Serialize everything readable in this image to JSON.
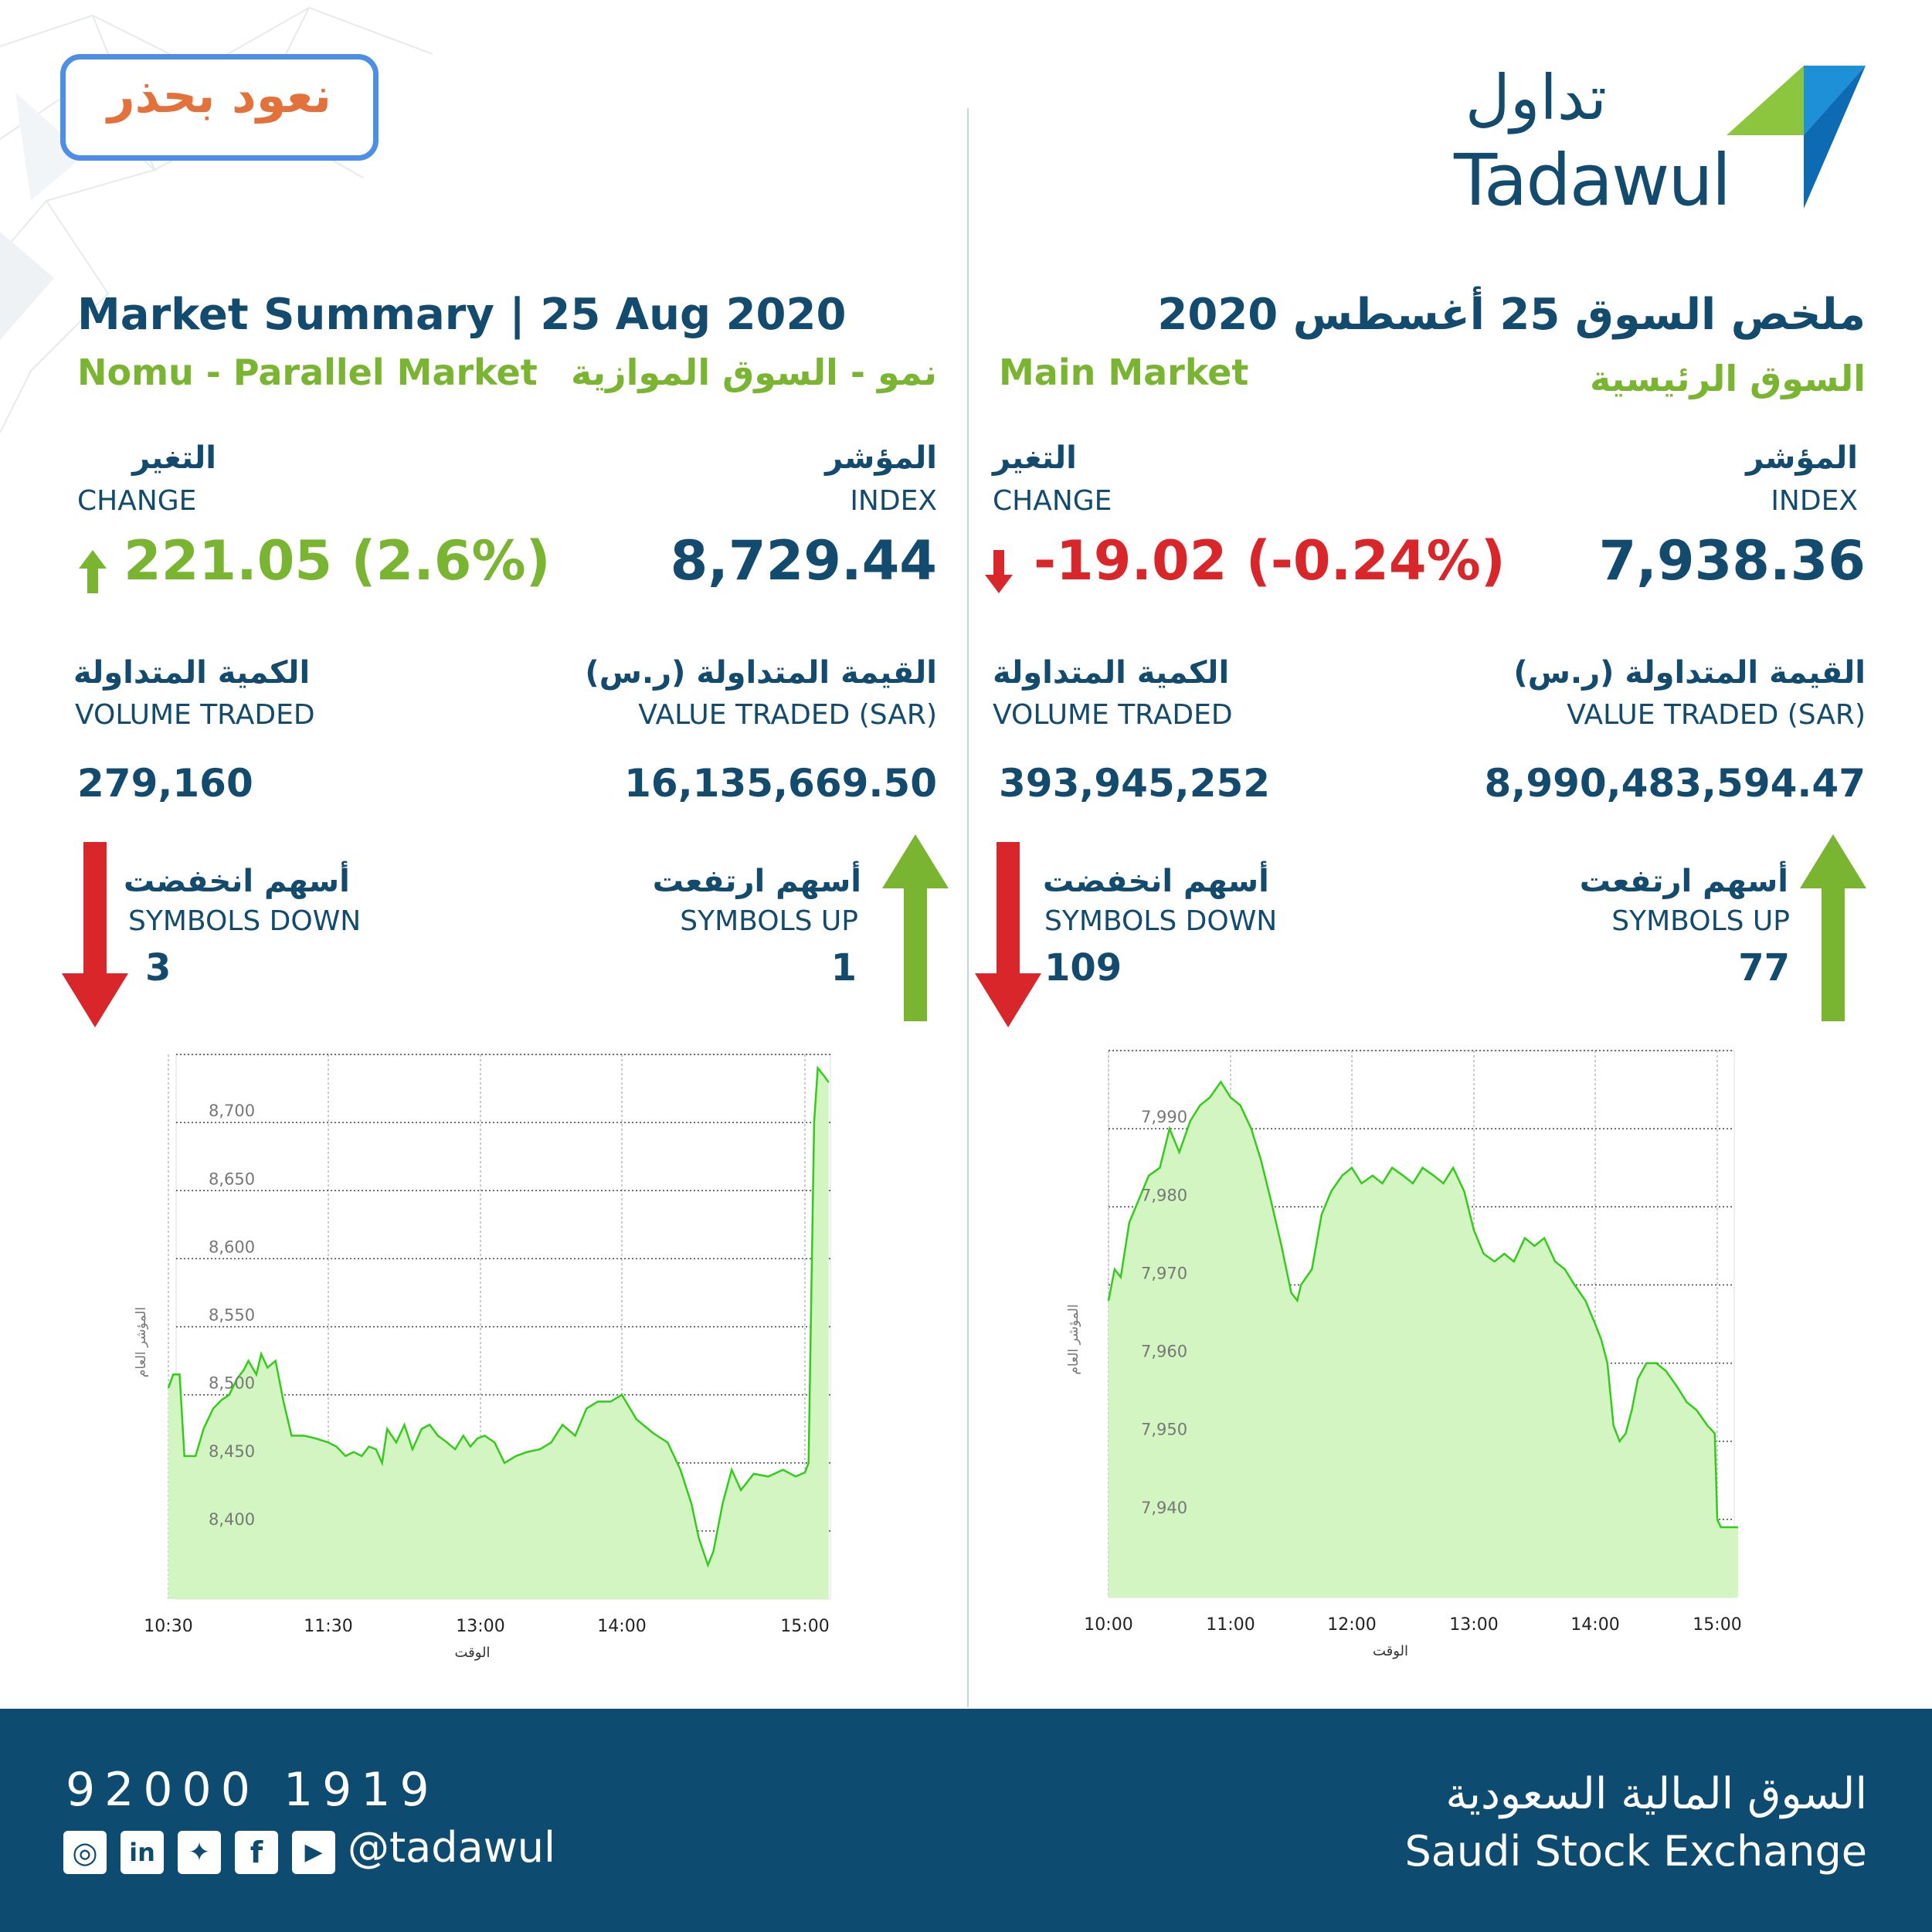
{
  "campaign_logo_text": "نعود بحذر",
  "brand": {
    "ar": "تداول",
    "en": "Tadawul"
  },
  "title_en": "Market Summary | 25 Aug 2020",
  "title_ar": "ملخص السوق 25 أغسطس 2020",
  "nomu": {
    "label_en": "Nomu - Parallel Market",
    "label_ar": "نمو - السوق الموازية",
    "change_ar": "التغير",
    "change_en": "CHANGE",
    "change_value": "221.05 (2.6%)",
    "index_ar": "المؤشر",
    "index_en": "INDEX",
    "index_value": "8,729.44",
    "volume_ar": "الكمية المتداولة",
    "volume_en": "VOLUME TRADED",
    "volume_value": "279,160",
    "value_ar": "القيمة المتداولة (ر.س)",
    "value_en": "VALUE TRADED (SAR)",
    "value_value": "16,135,669.50",
    "down_ar": "أسهم انخفضت",
    "down_en": "SYMBOLS DOWN",
    "down_value": "3",
    "up_ar": "أسهم ارتفعت",
    "up_en": "SYMBOLS UP",
    "up_value": "1"
  },
  "main": {
    "label_en": "Main Market",
    "label_ar": "السوق الرئيسية",
    "change_ar": "التغير",
    "change_en": "CHANGE",
    "change_value": "-19.02 (-0.24%)",
    "index_ar": "المؤشر",
    "index_en": "INDEX",
    "index_value": "7,938.36",
    "volume_ar": "الكمية المتداولة",
    "volume_en": "VOLUME TRADED",
    "volume_value": "393,945,252",
    "value_ar": "القيمة المتداولة (ر.س)",
    "value_en": "VALUE TRADED (SAR)",
    "value_value": "8,990,483,594.47",
    "down_ar": "أسهم انخفضت",
    "down_en": "SYMBOLS DOWN",
    "down_value": "109",
    "up_ar": "أسهم ارتفعت",
    "up_en": "SYMBOLS UP",
    "up_value": "77"
  },
  "colors": {
    "navy": "#124b6e",
    "green": "#7ab531",
    "red": "#d9262b",
    "footer": "#0d4c70",
    "area_fill": "#d2f5c2",
    "area_line": "#33cc1a"
  },
  "chart_data": [
    {
      "type": "area",
      "series": [
        {
          "values": [
            [
              10.5,
              8505
            ],
            [
              10.53,
              8515
            ],
            [
              10.57,
              8515
            ],
            [
              10.6,
              8455
            ],
            [
              10.67,
              8455
            ],
            [
              10.72,
              8475
            ],
            [
              10.78,
              8490
            ],
            [
              10.83,
              8496
            ],
            [
              10.88,
              8500
            ],
            [
              10.93,
              8512
            ],
            [
              10.97,
              8518
            ],
            [
              11.0,
              8525
            ],
            [
              11.05,
              8515
            ],
            [
              11.08,
              8530
            ],
            [
              11.12,
              8520
            ],
            [
              11.17,
              8525
            ],
            [
              11.22,
              8495
            ],
            [
              11.27,
              8470
            ],
            [
              11.35,
              8470
            ],
            [
              11.42,
              8468
            ],
            [
              11.5,
              8465
            ],
            [
              11.58,
              8462
            ],
            [
              11.67,
              8455
            ],
            [
              11.75,
              8458
            ],
            [
              11.83,
              8455
            ],
            [
              11.9,
              8462
            ],
            [
              11.97,
              8460
            ],
            [
              12.03,
              8450
            ],
            [
              12.08,
              8475
            ],
            [
              12.17,
              8465
            ],
            [
              12.25,
              8478
            ],
            [
              12.33,
              8460
            ],
            [
              12.42,
              8475
            ],
            [
              12.5,
              8478
            ],
            [
              12.58,
              8470
            ],
            [
              12.67,
              8465
            ],
            [
              12.75,
              8460
            ],
            [
              12.83,
              8470
            ],
            [
              12.9,
              8462
            ],
            [
              12.97,
              8468
            ],
            [
              13.03,
              8470
            ],
            [
              13.1,
              8465
            ],
            [
              13.17,
              8450
            ],
            [
              13.25,
              8455
            ],
            [
              13.33,
              8458
            ],
            [
              13.42,
              8460
            ],
            [
              13.5,
              8465
            ],
            [
              13.58,
              8478
            ],
            [
              13.67,
              8470
            ],
            [
              13.75,
              8490
            ],
            [
              13.83,
              8495
            ],
            [
              13.92,
              8495
            ],
            [
              14.0,
              8500
            ],
            [
              14.08,
              8482
            ],
            [
              14.17,
              8472
            ],
            [
              14.25,
              8465
            ],
            [
              14.32,
              8445
            ],
            [
              14.38,
              8420
            ],
            [
              14.42,
              8395
            ],
            [
              14.47,
              8375
            ],
            [
              14.5,
              8385
            ],
            [
              14.55,
              8420
            ],
            [
              14.6,
              8445
            ],
            [
              14.65,
              8430
            ],
            [
              14.72,
              8442
            ],
            [
              14.8,
              8440
            ],
            [
              14.88,
              8445
            ],
            [
              14.95,
              8440
            ],
            [
              15.0,
              8443
            ],
            [
              15.02,
              8450
            ],
            [
              15.05,
              8700
            ],
            [
              15.07,
              8740
            ],
            [
              15.1,
              8735
            ],
            [
              15.13,
              8729.44
            ]
          ]
        }
      ],
      "xlabel": "الوقت",
      "ylabel": "المؤشر العام",
      "x_ticks": [
        "10:30",
        "11:30",
        "13:00",
        "14:00",
        "15:00"
      ],
      "y_ticks": [
        "8,700",
        "8,650",
        "8,600",
        "8,550",
        "8,500",
        "8,450",
        "8,400"
      ],
      "ylim": [
        8350,
        8750
      ]
    },
    {
      "type": "area",
      "series": [
        {
          "values": [
            [
              10.0,
              7968
            ],
            [
              10.05,
              7972
            ],
            [
              10.1,
              7971
            ],
            [
              10.17,
              7978
            ],
            [
              10.25,
              7981
            ],
            [
              10.33,
              7984
            ],
            [
              10.42,
              7985
            ],
            [
              10.5,
              7990
            ],
            [
              10.58,
              7987
            ],
            [
              10.67,
              7991
            ],
            [
              10.75,
              7993
            ],
            [
              10.83,
              7994
            ],
            [
              10.92,
              7996
            ],
            [
              11.0,
              7994
            ],
            [
              11.08,
              7993
            ],
            [
              11.17,
              7990
            ],
            [
              11.25,
              7986
            ],
            [
              11.33,
              7981
            ],
            [
              11.42,
              7975
            ],
            [
              11.5,
              7969
            ],
            [
              11.55,
              7968
            ],
            [
              11.58,
              7970
            ],
            [
              11.67,
              7972
            ],
            [
              11.75,
              7979
            ],
            [
              11.83,
              7982
            ],
            [
              11.92,
              7984
            ],
            [
              12.0,
              7985
            ],
            [
              12.08,
              7983
            ],
            [
              12.17,
              7984
            ],
            [
              12.25,
              7983
            ],
            [
              12.33,
              7985
            ],
            [
              12.42,
              7984
            ],
            [
              12.5,
              7983
            ],
            [
              12.58,
              7985
            ],
            [
              12.67,
              7984
            ],
            [
              12.75,
              7983
            ],
            [
              12.83,
              7985
            ],
            [
              12.92,
              7982
            ],
            [
              13.0,
              7977
            ],
            [
              13.08,
              7974
            ],
            [
              13.17,
              7973
            ],
            [
              13.25,
              7974
            ],
            [
              13.33,
              7973
            ],
            [
              13.42,
              7976
            ],
            [
              13.5,
              7975
            ],
            [
              13.58,
              7976
            ],
            [
              13.67,
              7973
            ],
            [
              13.75,
              7972
            ],
            [
              13.83,
              7970
            ],
            [
              13.92,
              7968
            ],
            [
              14.0,
              7965
            ],
            [
              14.05,
              7963
            ],
            [
              14.1,
              7960
            ],
            [
              14.15,
              7952
            ],
            [
              14.2,
              7950
            ],
            [
              14.25,
              7951
            ],
            [
              14.3,
              7954
            ],
            [
              14.35,
              7958
            ],
            [
              14.42,
              7960
            ],
            [
              14.5,
              7960
            ],
            [
              14.58,
              7959
            ],
            [
              14.67,
              7957
            ],
            [
              14.75,
              7955
            ],
            [
              14.83,
              7954
            ],
            [
              14.92,
              7952
            ],
            [
              14.98,
              7951
            ],
            [
              15.0,
              7940
            ],
            [
              15.03,
              7939
            ],
            [
              15.17,
              7939
            ]
          ]
        }
      ],
      "xlabel": "الوقت",
      "ylabel": "المؤشر العام",
      "x_ticks": [
        "10:00",
        "11:00",
        "12:00",
        "13:00",
        "14:00",
        "15:00"
      ],
      "y_ticks": [
        "7,990",
        "7,980",
        "7,970",
        "7,960",
        "7,950",
        "7,940"
      ],
      "ylim": [
        7930,
        8000
      ]
    }
  ],
  "footer": {
    "phone": "92000 1919",
    "handle": "@tadawul",
    "exchange_ar": "السوق المالية السعودية",
    "exchange_en": "Saudi Stock Exchange"
  }
}
